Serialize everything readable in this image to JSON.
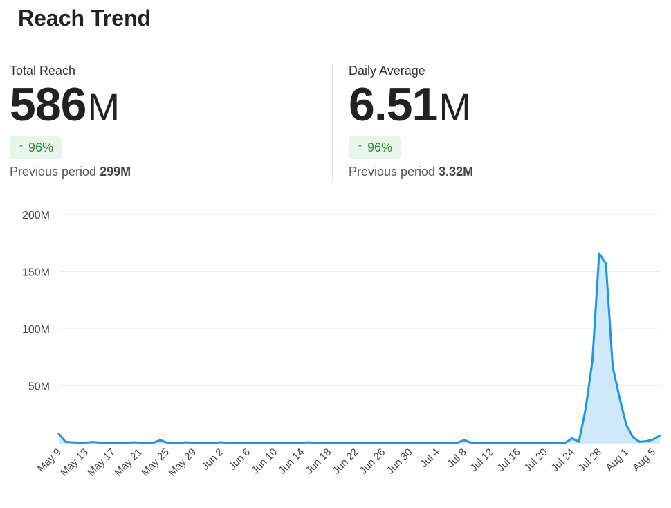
{
  "title": "Reach Trend",
  "kpis": [
    {
      "label": "Total Reach",
      "value": "586",
      "unit": "M",
      "change": "96%",
      "prev_label": "Previous period",
      "prev_value": "299M"
    },
    {
      "label": "Daily Average",
      "value": "6.51",
      "unit": "M",
      "change": "96%",
      "prev_label": "Previous period",
      "prev_value": "3.32M"
    }
  ],
  "colors": {
    "line": "#1a96e6",
    "fill": "#bfe0f8",
    "grid": "#eeeeee",
    "badge_bg": "#e7f5ea",
    "badge_fg": "#2e8b3f"
  },
  "icons": {
    "change": "arrow-up-icon"
  },
  "chart_data": {
    "type": "area",
    "title": "",
    "xlabel": "",
    "ylabel": "",
    "ylim": [
      0,
      200
    ],
    "yticks": [
      50,
      100,
      150,
      200
    ],
    "ytick_labels": [
      "50M",
      "100M",
      "150M",
      "200M"
    ],
    "xtick_labels": [
      "May 9",
      "May 13",
      "May 17",
      "May 21",
      "May 25",
      "May 29",
      "Jun 2",
      "Jun 6",
      "Jun 10",
      "Jun 14",
      "Jun 18",
      "Jun 22",
      "Jun 26",
      "Jun 30",
      "Jul 4",
      "Jul 8",
      "Jul 12",
      "Jul 16",
      "Jul 20",
      "Jul 24",
      "Jul 28",
      "Aug 1",
      "Aug 5"
    ],
    "grid": true,
    "legend": "none",
    "x": [
      "May 9",
      "May 10",
      "May 11",
      "May 12",
      "May 13",
      "May 14",
      "May 15",
      "May 16",
      "May 17",
      "May 18",
      "May 19",
      "May 20",
      "May 21",
      "May 22",
      "May 23",
      "May 24",
      "May 25",
      "May 26",
      "May 27",
      "May 28",
      "May 29",
      "May 30",
      "May 31",
      "Jun 1",
      "Jun 2",
      "Jun 3",
      "Jun 4",
      "Jun 5",
      "Jun 6",
      "Jun 7",
      "Jun 8",
      "Jun 9",
      "Jun 10",
      "Jun 11",
      "Jun 12",
      "Jun 13",
      "Jun 14",
      "Jun 15",
      "Jun 16",
      "Jun 17",
      "Jun 18",
      "Jun 19",
      "Jun 20",
      "Jun 21",
      "Jun 22",
      "Jun 23",
      "Jun 24",
      "Jun 25",
      "Jun 26",
      "Jun 27",
      "Jun 28",
      "Jun 29",
      "Jun 30",
      "Jul 1",
      "Jul 2",
      "Jul 3",
      "Jul 4",
      "Jul 5",
      "Jul 6",
      "Jul 7",
      "Jul 8",
      "Jul 9",
      "Jul 10",
      "Jul 11",
      "Jul 12",
      "Jul 13",
      "Jul 14",
      "Jul 15",
      "Jul 16",
      "Jul 17",
      "Jul 18",
      "Jul 19",
      "Jul 20",
      "Jul 21",
      "Jul 22",
      "Jul 23",
      "Jul 24",
      "Jul 25",
      "Jul 26",
      "Jul 27",
      "Jul 28",
      "Jul 29",
      "Jul 30",
      "Jul 31",
      "Aug 1",
      "Aug 2",
      "Aug 3",
      "Aug 4",
      "Aug 5",
      "Aug 6"
    ],
    "series": [
      {
        "values": [
          8,
          1,
          0.5,
          0.3,
          0.3,
          0.8,
          0.3,
          0.3,
          0.2,
          0.2,
          0.2,
          0.5,
          0.3,
          0.2,
          0.2,
          2.5,
          0.3,
          0.2,
          0.2,
          0.5,
          0.2,
          0.2,
          0.2,
          0.2,
          0.5,
          0.2,
          0.2,
          0.2,
          0.2,
          0.2,
          0.2,
          0.2,
          0.2,
          0.2,
          0.2,
          0.2,
          0.2,
          0.5,
          0.2,
          0.2,
          0.2,
          0.2,
          0.2,
          0.2,
          0.2,
          0.2,
          0.2,
          0.2,
          0.2,
          0.2,
          0.2,
          0.2,
          0.2,
          0.2,
          0.2,
          0.2,
          0.2,
          0.2,
          0.2,
          0.2,
          2.5,
          0.3,
          0.2,
          0.2,
          0.2,
          0.2,
          0.2,
          0.2,
          0.2,
          0.2,
          0.2,
          0.2,
          0.2,
          0.2,
          0.2,
          0.2,
          4,
          1,
          30,
          72,
          166,
          157,
          67,
          40,
          16,
          5,
          1,
          1.5,
          3,
          6.5
        ]
      }
    ]
  }
}
